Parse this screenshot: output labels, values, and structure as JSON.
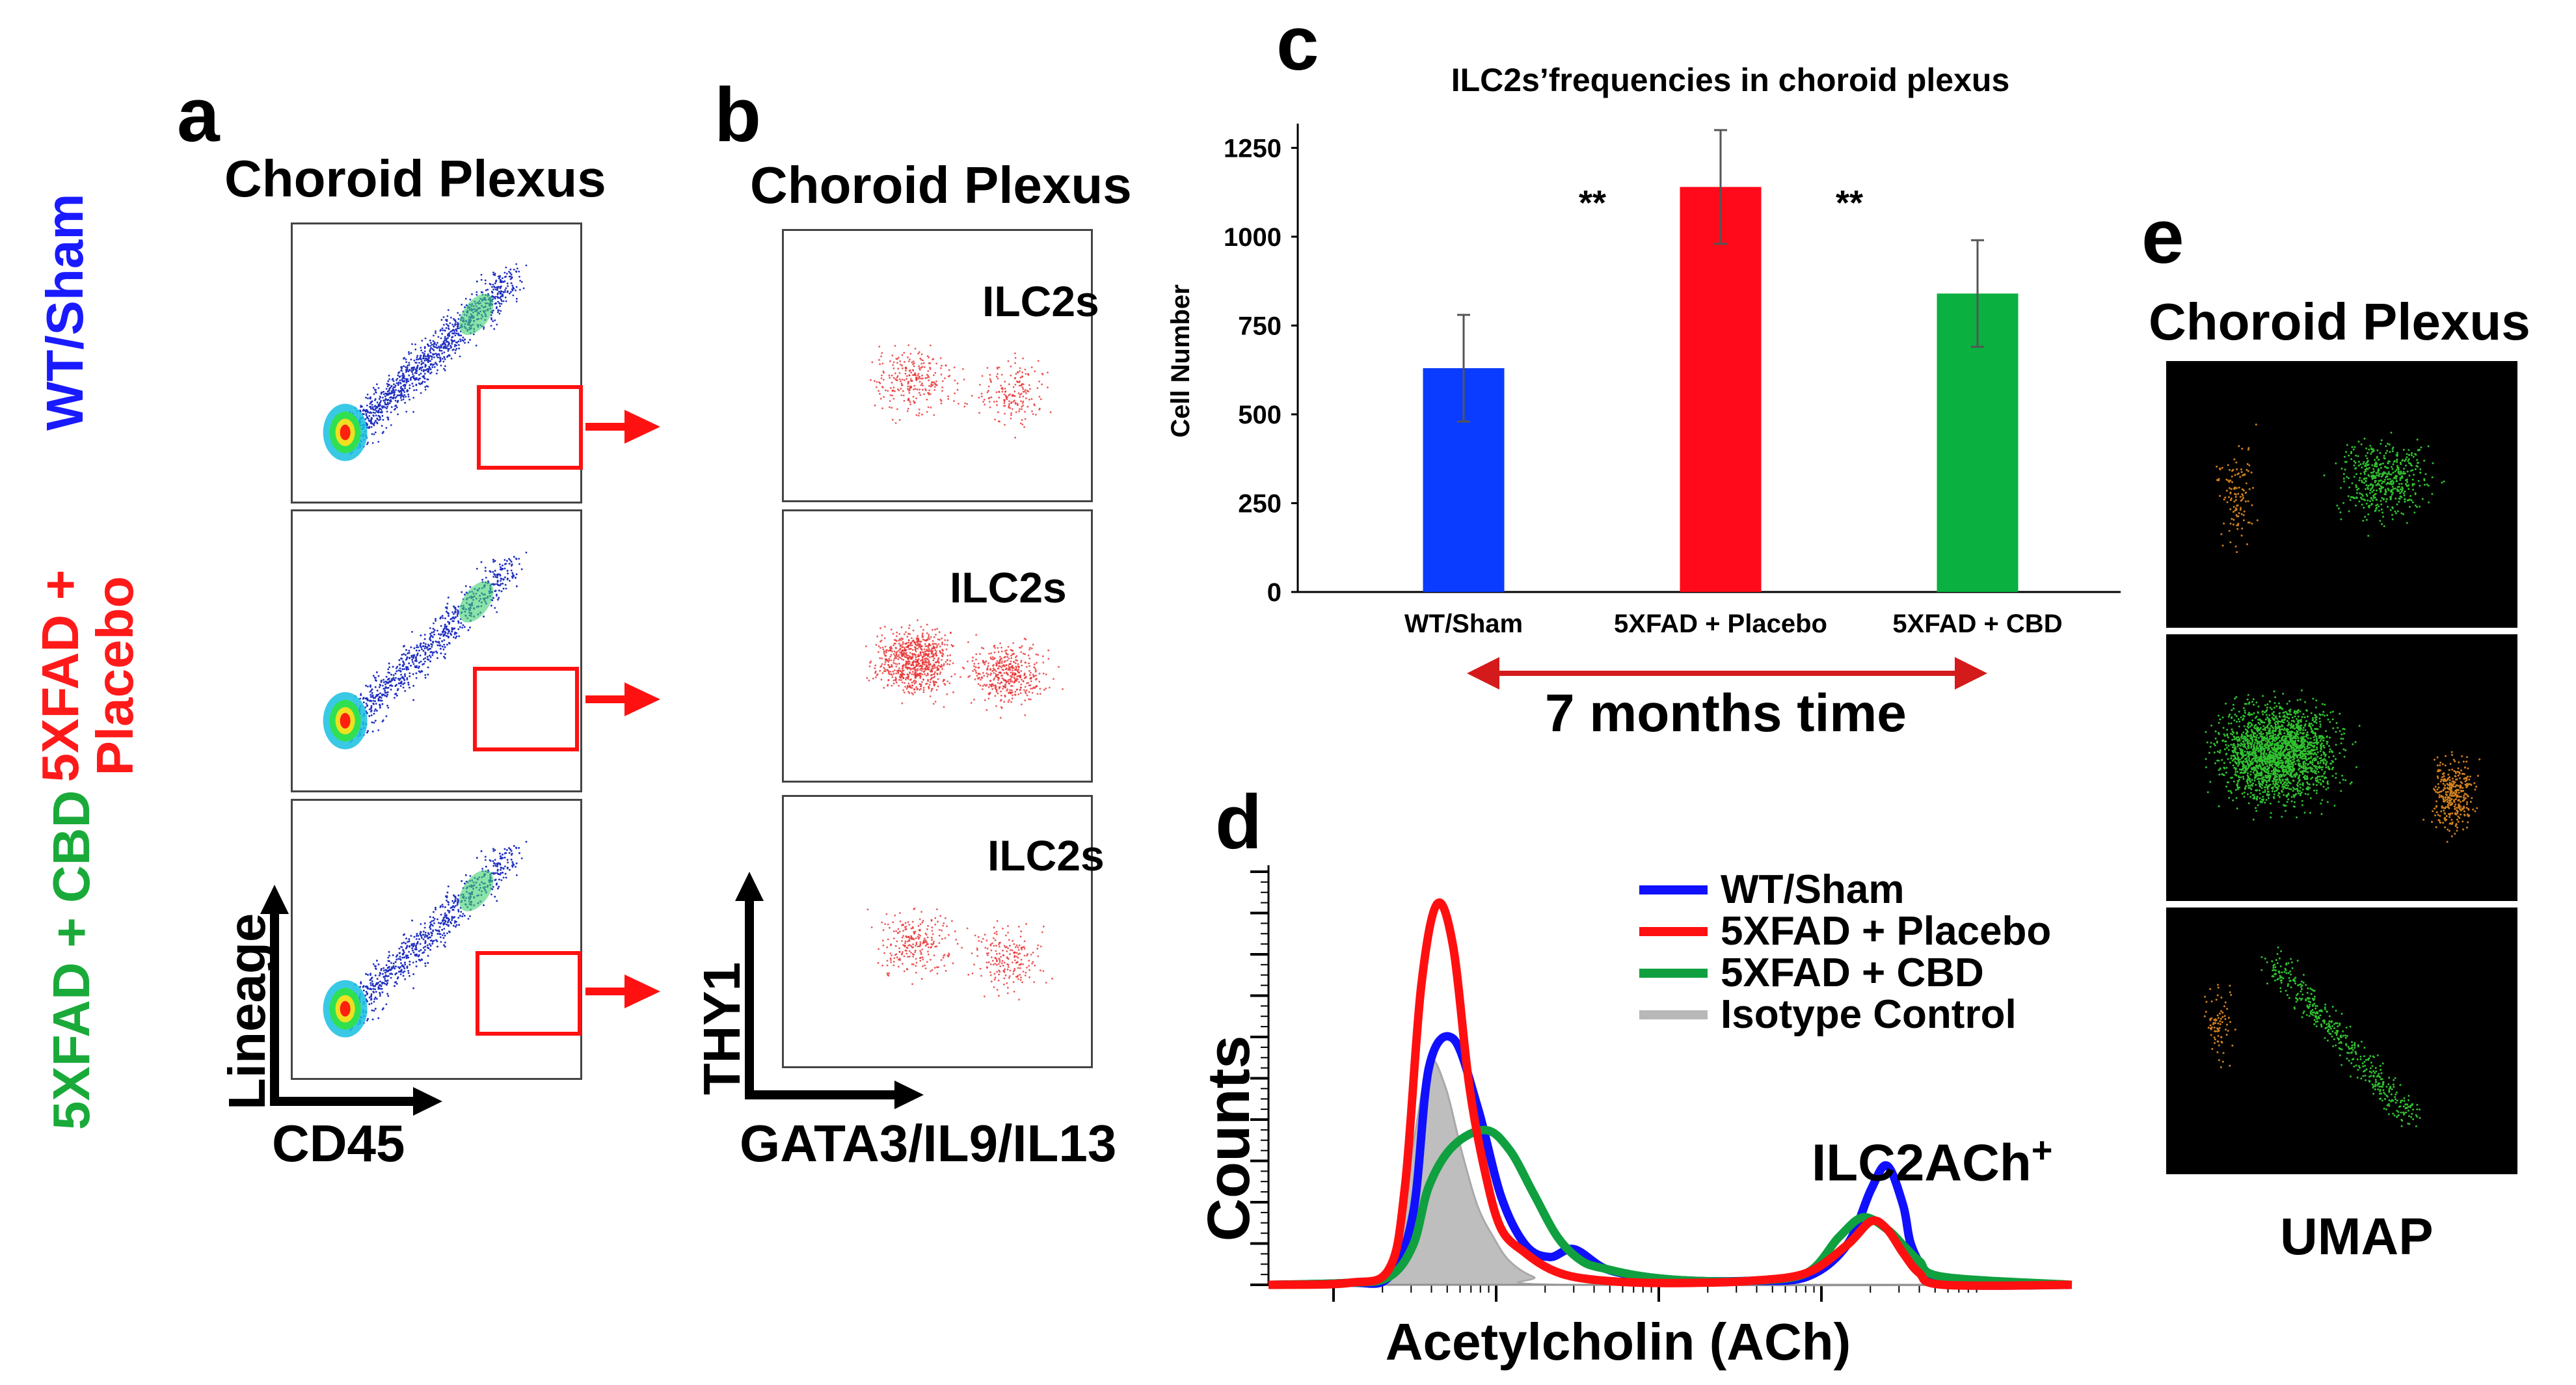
{
  "panels": {
    "a": {
      "letter": "a",
      "title": "Choroid Plexus",
      "x_axis": "CD45",
      "y_axis": "Lineage",
      "rows": [
        {
          "label": "WT/Sham",
          "color": "#1a1aff"
        },
        {
          "label": "5XFAD + Placebo",
          "line1": "5XFAD +",
          "line2": "Placebo",
          "color": "#ff1a1a"
        },
        {
          "label": "5XFAD + CBD",
          "color": "#1aaa3a"
        }
      ]
    },
    "b": {
      "letter": "b",
      "title": "Choroid Plexus",
      "x_axis": "GATA3/IL9/IL13",
      "y_axis": "THY1",
      "gate_labels": [
        "ILC2s",
        "ILC2s",
        "ILC2s"
      ]
    },
    "c": {
      "letter": "c",
      "footer": "7 months time"
    },
    "d": {
      "letter": "d",
      "annotation": "ILC2ACh",
      "annotation_sup": "+"
    },
    "e": {
      "letter": "e",
      "title": "Choroid Plexus",
      "x_axis": "UMAP"
    }
  },
  "chart_data": [
    {
      "type": "bar",
      "title": "ILC2s’frequencies in choroid plexus",
      "xlabel": "",
      "ylabel": "Cell Number",
      "categories": [
        "WT/Sham",
        "5XFAD + Placebo",
        "5XFAD + CBD"
      ],
      "values": [
        630,
        1140,
        840
      ],
      "errors": [
        150,
        160,
        150
      ],
      "colors": [
        "#0a3cff",
        "#ff0a1a",
        "#0ab040"
      ],
      "ylim": [
        0,
        1300
      ],
      "yticks": [
        0,
        250,
        500,
        750,
        1000,
        1250
      ],
      "significance": [
        "**",
        "**"
      ],
      "grid": false
    },
    {
      "type": "line",
      "title": "",
      "xlabel": "Acetylcholin (ACh)",
      "ylabel": "Counts",
      "xlim": [
        0,
        100
      ],
      "ylim": [
        0,
        100
      ],
      "legend_position": "top-right",
      "series": [
        {
          "name": "WT/Sham",
          "color": "#1010ff",
          "x": [
            0,
            10,
            15,
            18,
            20,
            23,
            26,
            29,
            32,
            35,
            38,
            42,
            47,
            53,
            60,
            67,
            72,
            75,
            77,
            79,
            80,
            82,
            85,
            100
          ],
          "y": [
            0,
            0.5,
            2,
            18,
            55,
            62,
            45,
            22,
            10,
            7,
            9,
            4,
            2,
            1,
            1,
            2,
            10,
            24,
            30,
            20,
            10,
            3,
            0,
            0
          ]
        },
        {
          "name": "5XFAD + Placebo",
          "color": "#ff1010",
          "x": [
            0,
            10,
            15,
            17,
            19,
            21,
            23,
            25,
            27,
            29,
            32,
            35,
            38,
            42,
            47,
            53,
            60,
            67,
            72,
            75,
            77,
            79,
            81,
            84,
            100
          ],
          "y": [
            0,
            0.5,
            4,
            25,
            75,
            96,
            85,
            50,
            28,
            14,
            8,
            4,
            2,
            1,
            0.5,
            0.5,
            1,
            3,
            10,
            16,
            14,
            8,
            3,
            0,
            0
          ]
        },
        {
          "name": "5XFAD + CBD",
          "color": "#10a040",
          "x": [
            0,
            10,
            15,
            18,
            20,
            23,
            27,
            30,
            33,
            36,
            39,
            42,
            47,
            53,
            60,
            67,
            71,
            74,
            77,
            79,
            81,
            84,
            100
          ],
          "y": [
            0,
            0.5,
            2,
            10,
            25,
            35,
            39,
            34,
            23,
            12,
            6,
            4,
            2,
            1,
            1,
            3,
            12,
            17,
            14,
            10,
            6,
            2,
            0
          ]
        },
        {
          "name": "Isotype Control",
          "color": "#b8b8b8",
          "fill": true,
          "x": [
            0,
            12,
            16,
            18,
            20,
            22,
            24,
            26,
            28,
            30,
            33,
            37,
            100
          ],
          "y": [
            0,
            0.5,
            8,
            35,
            56,
            50,
            34,
            20,
            12,
            6,
            2,
            0,
            0
          ]
        }
      ]
    }
  ]
}
